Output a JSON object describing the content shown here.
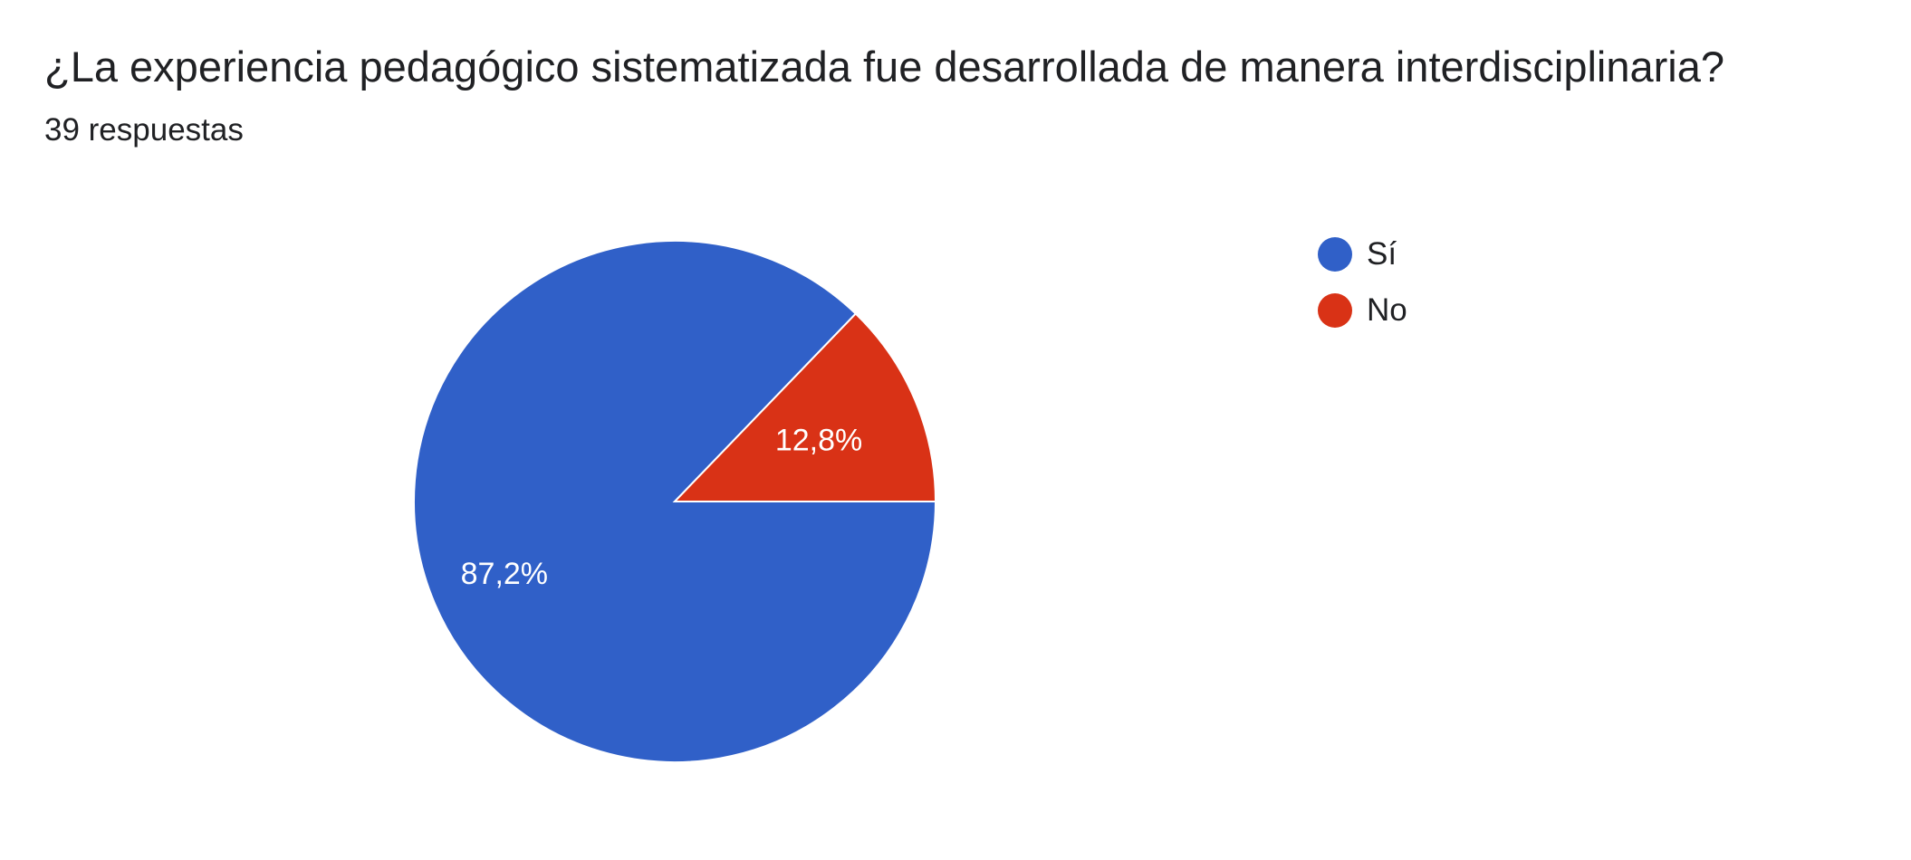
{
  "header": {
    "title": "¿La experiencia pedagógico sistematizada fue desarrollada de manera interdisciplinaria?",
    "subtitle": "39 respuestas"
  },
  "chart_data": {
    "type": "pie",
    "title": "¿La experiencia pedagógico sistematizada fue desarrollada de manera interdisciplinaria?",
    "total_responses": 39,
    "slices": [
      {
        "label": "Sí",
        "value": 87.2,
        "display": "87,2%",
        "color": "#3060c8"
      },
      {
        "label": "No",
        "value": 12.8,
        "display": "12,8%",
        "color": "#d93216"
      }
    ],
    "legend_position": "top-right"
  },
  "legend": {
    "items": [
      {
        "label": "Sí",
        "color": "#3060c8"
      },
      {
        "label": "No",
        "color": "#d93216"
      }
    ]
  }
}
